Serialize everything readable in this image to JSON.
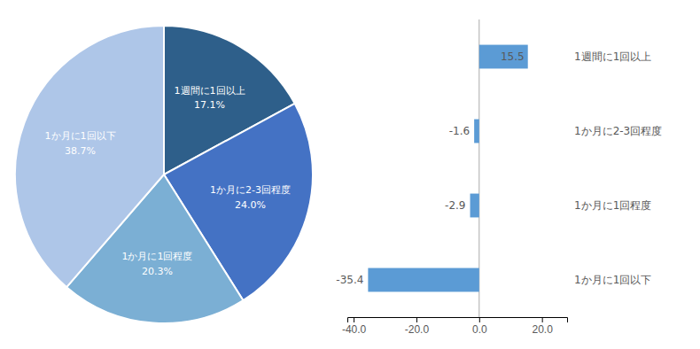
{
  "chart_data": [
    {
      "type": "pie",
      "categories": [
        "1週間に1回以上\n17.1%",
        "1か月に2-3回程度\n24.0%",
        "1か月に1回程度\n20.3%",
        "1か月に1回以下\n38.7%"
      ],
      "values": [
        17.1,
        24.0,
        20.3,
        38.7
      ],
      "colors": [
        "#2e5f8a",
        "#4472c4",
        "#7bafd4",
        "#aec6e8"
      ]
    },
    {
      "type": "bar",
      "orientation": "horizontal",
      "categories": [
        "1週間に1回以上",
        "1か月に2-3回程度",
        "1か月に1回程度",
        "1か月に1回以下"
      ],
      "values": [
        15.5,
        -1.6,
        -2.9,
        -35.4
      ],
      "color": "#5b9bd5",
      "xlim": [
        -42.0,
        28.0
      ],
      "xticks": [
        {
          "value": -40.0,
          "label": "-40.0"
        },
        {
          "value": -20.0,
          "label": "-20.0"
        },
        {
          "value": 0.0,
          "label": "0.0"
        },
        {
          "value": 20.0,
          "label": "20.0"
        }
      ],
      "data_labels": true,
      "grid": false
    }
  ]
}
